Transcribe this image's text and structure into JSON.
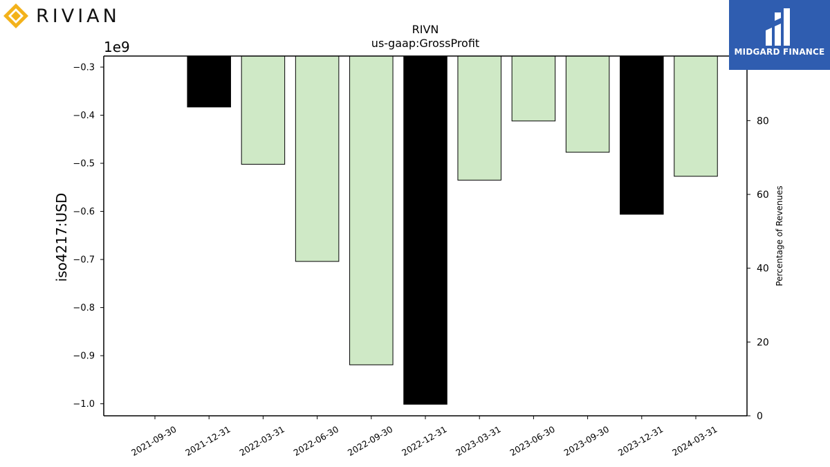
{
  "brand": {
    "company_logo": "RIVIAN",
    "publisher_logo": "MIDGARD FINANCE"
  },
  "chart_data": {
    "type": "bar",
    "title": "RIVN",
    "subtitle": "us-gaap:GrossProfit",
    "ylabel": "iso4217:USD",
    "y2label": "Percentage of Revenues",
    "offset_text": "1e9",
    "categories": [
      "2021-09-30",
      "2021-12-31",
      "2022-03-31",
      "2022-06-30",
      "2022-09-30",
      "2022-12-31",
      "2023-03-31",
      "2023-06-30",
      "2023-09-30",
      "2023-12-31",
      "2024-03-31"
    ],
    "values": [
      null,
      -0.383,
      -0.502,
      -0.704,
      -0.919,
      -1.001,
      -0.535,
      -0.412,
      -0.477,
      -0.606,
      -0.527
    ],
    "highlight": [
      false,
      true,
      false,
      false,
      false,
      true,
      false,
      false,
      false,
      true,
      false
    ],
    "colors": {
      "normal": "#cfe9c6",
      "highlight": "#000000"
    },
    "ylim": [
      -1.025,
      -0.277
    ],
    "yticks": [
      -0.3,
      -0.4,
      -0.5,
      -0.6,
      -0.7,
      -0.8,
      -0.9,
      -1.0
    ],
    "ytick_labels": [
      "−0.3",
      "−0.4",
      "−0.5",
      "−0.6",
      "−0.7",
      "−0.8",
      "−0.9",
      "−1.0"
    ],
    "y2lim": [
      0,
      97.5
    ],
    "y2ticks": [
      0,
      20,
      40,
      60,
      80
    ],
    "y2tick_labels": [
      "0",
      "20",
      "40",
      "60",
      "80"
    ],
    "grid": false,
    "legend": "none"
  }
}
